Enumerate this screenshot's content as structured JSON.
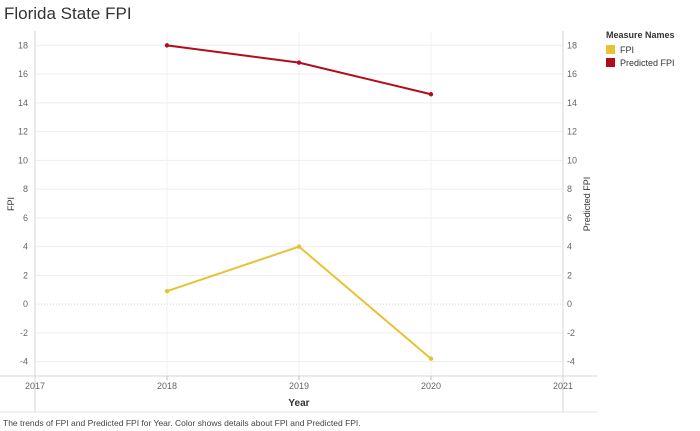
{
  "chart_data": {
    "type": "line",
    "title": "Florida State FPI",
    "xlabel": "Year",
    "ylabel_left": "FPI",
    "ylabel_right": "Predicted FPI",
    "x_ticks": [
      "2017",
      "2018",
      "2019",
      "2020",
      "2021"
    ],
    "x_range": [
      2017,
      2021
    ],
    "y_ticks": [
      "18",
      "16",
      "14",
      "12",
      "10",
      "8",
      "6",
      "4",
      "2",
      "0",
      "-2",
      "-4"
    ],
    "ylim": [
      -5,
      19
    ],
    "grid": true,
    "series": [
      {
        "name": "FPI",
        "color": "#e8c234",
        "x": [
          2018,
          2019,
          2020
        ],
        "values": [
          0.9,
          4.0,
          -3.8
        ]
      },
      {
        "name": "Predicted FPI",
        "color": "#b10c1a",
        "x": [
          2018,
          2019,
          2020
        ],
        "values": [
          18.0,
          16.8,
          14.6
        ]
      }
    ],
    "legend": {
      "title": "Measure Names",
      "placement": "top-right",
      "items": [
        {
          "label": "FPI",
          "color": "#e8c234"
        },
        {
          "label": "Predicted FPI",
          "color": "#b10c1a"
        }
      ]
    },
    "caption": "The trends of FPI and Predicted FPI for Year.  Color shows details about FPI and Predicted FPI."
  }
}
